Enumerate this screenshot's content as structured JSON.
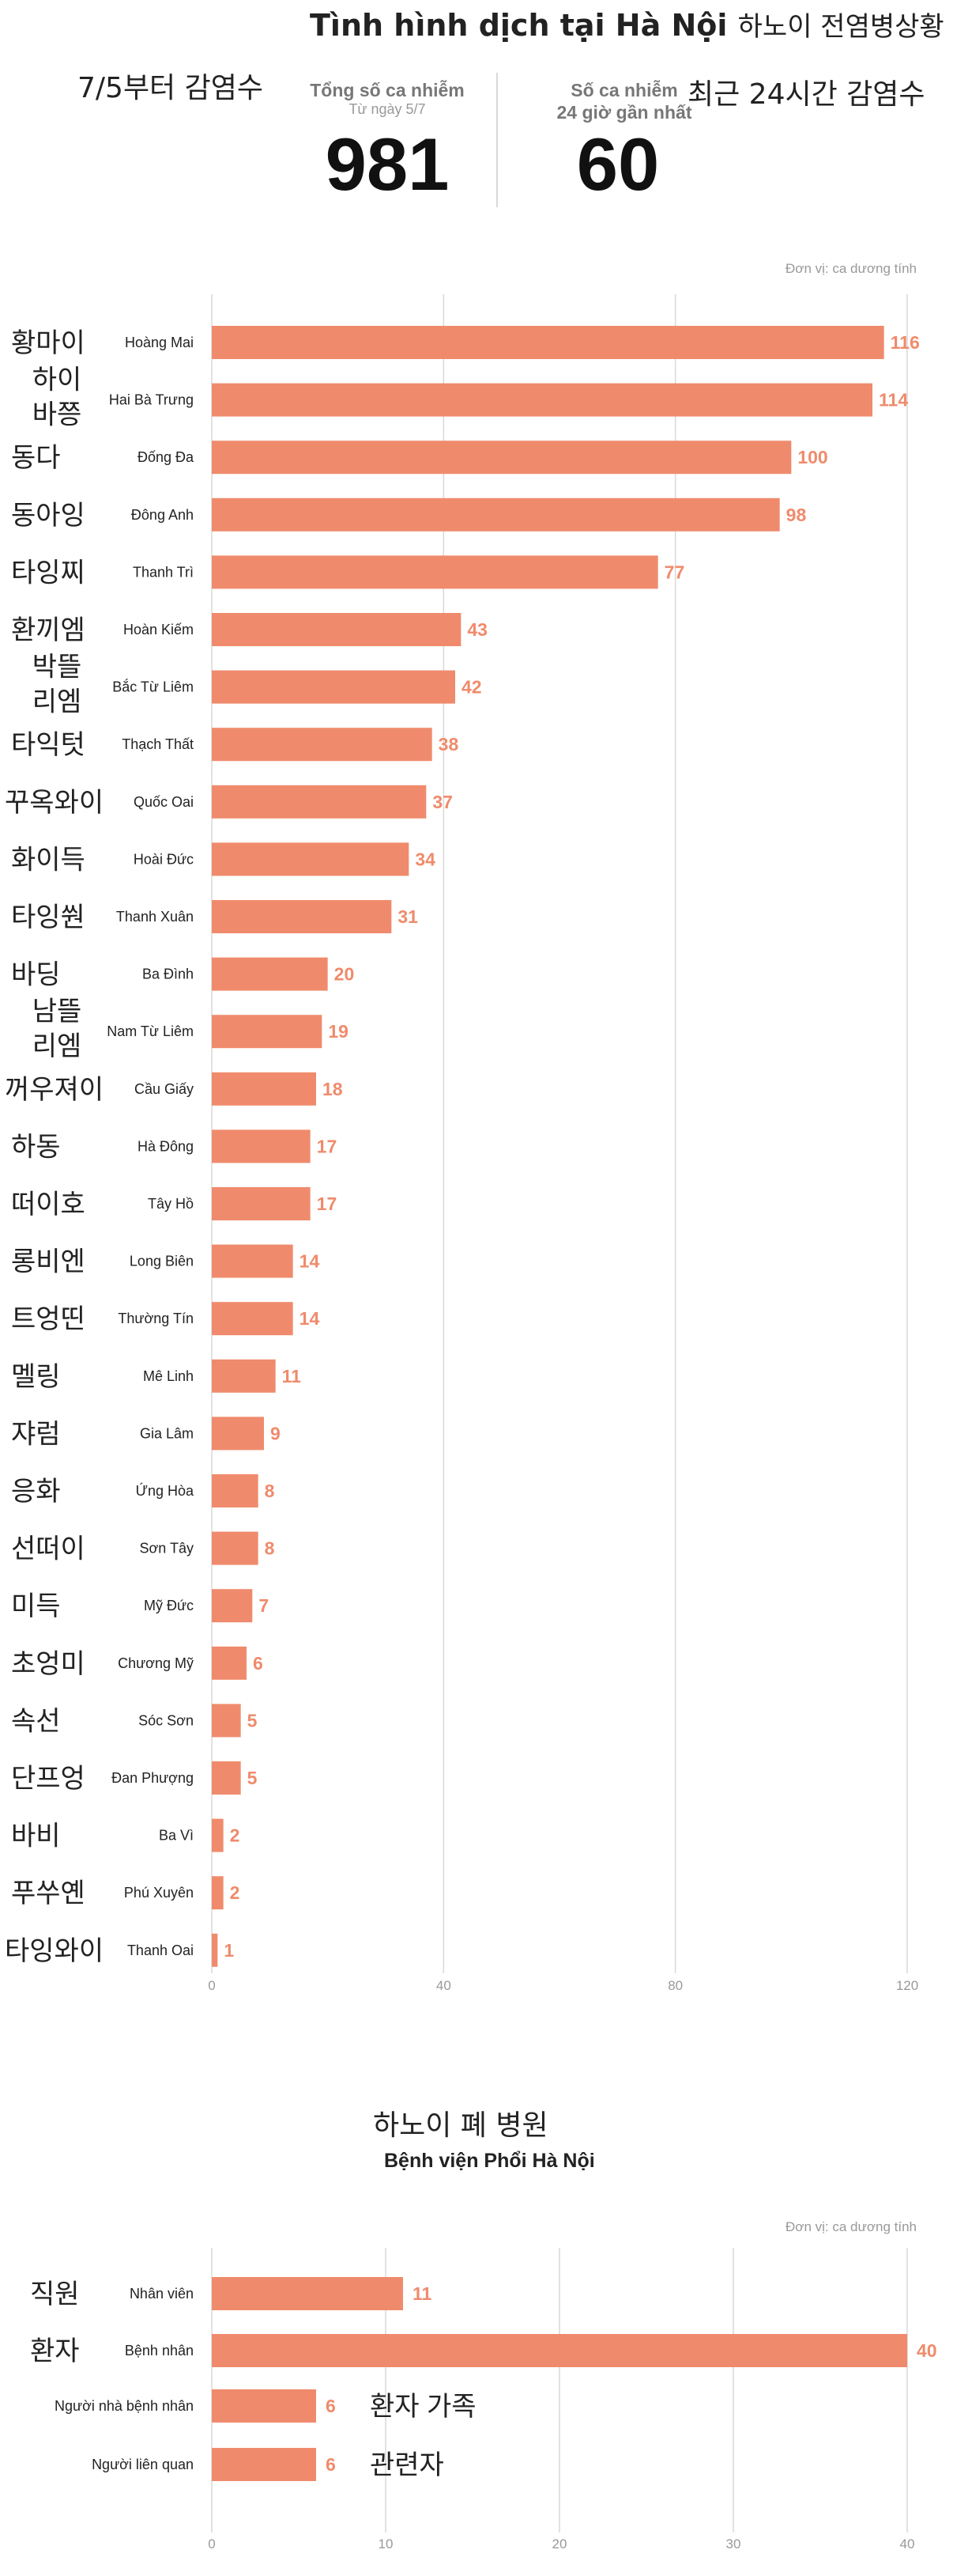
{
  "header": {
    "title": "Tình hình dịch tại Hà Nội",
    "title_kr": "하노이 전염병상황"
  },
  "stats": {
    "total": {
      "note_kr": "7/5부터 감염수",
      "label": "Tổng số ca nhiễm",
      "sub": "Từ ngày 5/7",
      "value": "981"
    },
    "recent": {
      "label_line1": "Số ca nhiễm",
      "label_line2": "24 giờ gần nhất",
      "note_kr": "최근 24시간 감염수",
      "value": "60"
    }
  },
  "colors": {
    "bar": "#ef8b6c",
    "value_label": "#ef8b6c",
    "gridline": "#d9d9d9",
    "axis_tick": "#999999"
  },
  "chart_data": [
    {
      "type": "bar",
      "orientation": "horizontal",
      "unit_note": "Đơn vị: ca dương tính",
      "xlim": [
        0,
        120
      ],
      "xticks": [
        0,
        40,
        80,
        120
      ],
      "grid": true,
      "categories": [
        "Hoàng Mai",
        "Hai Bà Trưng",
        "Đống Đa",
        "Đông Anh",
        "Thanh Trì",
        "Hoàn Kiếm",
        "Bắc Từ Liêm",
        "Thạch Thất",
        "Quốc Oai",
        "Hoài Đức",
        "Thanh Xuân",
        "Ba Đình",
        "Nam Từ Liêm",
        "Cầu Giấy",
        "Hà Đông",
        "Tây Hồ",
        "Long Biên",
        "Thường Tín",
        "Mê Linh",
        "Gia Lâm",
        "Ứng Hòa",
        "Sơn Tây",
        "Mỹ Đức",
        "Chương Mỹ",
        "Sóc Sơn",
        "Đan Phượng",
        "Ba Vì",
        "Phú Xuyên",
        "Thanh Oai"
      ],
      "categories_kr": [
        "황마이",
        "하이\n바쯩",
        "동다",
        "동아잉",
        "타잉찌",
        "환끼엠",
        "박뜰\n리엠",
        "타익텃",
        "꾸옥와이",
        "화이득",
        "타잉쒄",
        "바딩",
        "남뜰\n리엠",
        "꺼우져이",
        "하동",
        "떠이호",
        "롱비엔",
        "트엉띤",
        "멜링",
        "쟈럼",
        "응화",
        "선떠이",
        "미득",
        "초엉미",
        "속선",
        "단프엉",
        "바비",
        "푸쑤옌",
        "타잉와이"
      ],
      "values": [
        116,
        114,
        100,
        98,
        77,
        43,
        42,
        38,
        37,
        34,
        31,
        20,
        19,
        18,
        17,
        17,
        14,
        14,
        11,
        9,
        8,
        8,
        7,
        6,
        5,
        5,
        2,
        2,
        1
      ]
    },
    {
      "type": "bar",
      "orientation": "horizontal",
      "title": "Bệnh viện Phổi Hà Nội",
      "title_kr": "하노이 폐 병원",
      "unit_note": "Đơn vị: ca dương tính",
      "xlim": [
        0,
        40
      ],
      "xticks": [
        0,
        10,
        20,
        30,
        40
      ],
      "grid": true,
      "categories": [
        "Nhân viên",
        "Bệnh nhân",
        "Người nhà bệnh nhân",
        "Người liên quan"
      ],
      "categories_kr": [
        "직원",
        "환자",
        "환자 가족",
        "관련자"
      ],
      "values": [
        11,
        40,
        6,
        6
      ]
    }
  ]
}
